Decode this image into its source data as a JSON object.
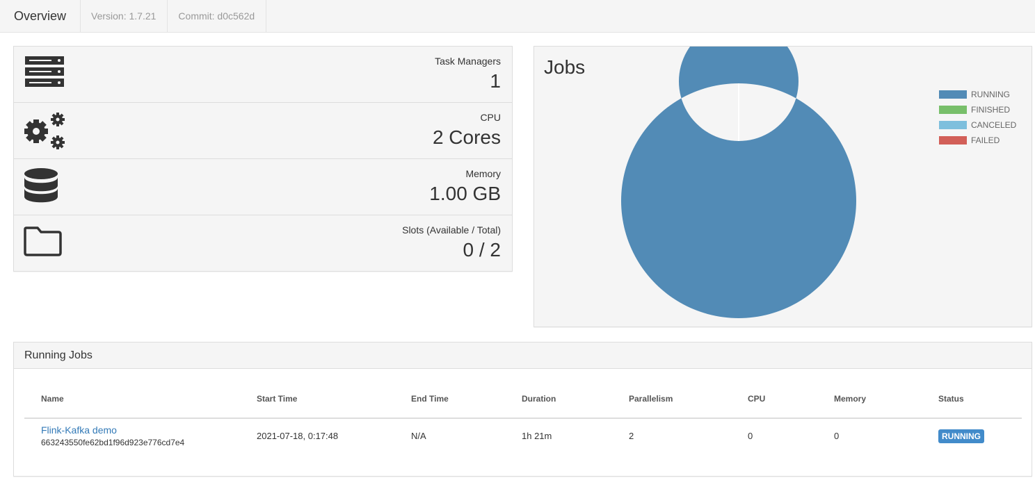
{
  "topbar": {
    "title": "Overview",
    "version": "Version: 1.7.21",
    "commit": "Commit: d0c562d"
  },
  "stats": [
    {
      "icon": "server-icon",
      "label": "Task Managers",
      "value": "1"
    },
    {
      "icon": "gears-icon",
      "label": "CPU",
      "value": "2 Cores"
    },
    {
      "icon": "database-icon",
      "label": "Memory",
      "value": "1.00 GB"
    },
    {
      "icon": "folder-icon",
      "label": "Slots (Available / Total)",
      "value": "0 / 2"
    }
  ],
  "jobs_panel": {
    "title": "Jobs"
  },
  "chart_data": {
    "type": "pie",
    "title": "Jobs",
    "categories": [
      "RUNNING",
      "FINISHED",
      "CANCELED",
      "FAILED"
    ],
    "values": [
      1,
      0,
      0,
      0
    ],
    "colors": [
      "#528bb6",
      "#78bf6a",
      "#7ebfdd",
      "#d25f58"
    ],
    "legend": "top-right"
  },
  "running_jobs": {
    "title": "Running Jobs",
    "columns": [
      "Name",
      "Start Time",
      "End Time",
      "Duration",
      "Parallelism",
      "CPU",
      "Memory",
      "Status"
    ],
    "rows": [
      {
        "name": "Flink-Kafka demo",
        "id": "663243550fe62bd1f96d923e776cd7e4",
        "start_time": "2021-07-18, 0:17:48",
        "end_time": "N/A",
        "duration": "1h 21m",
        "parallelism": "2",
        "cpu": "0",
        "memory": "0",
        "status": "RUNNING"
      }
    ]
  }
}
